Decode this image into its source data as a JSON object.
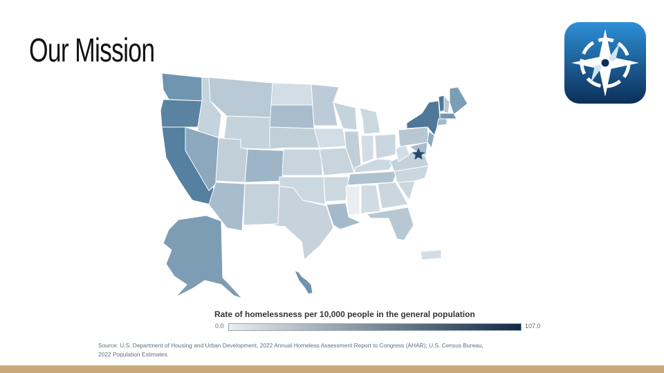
{
  "slide": {
    "title": "Our Mission",
    "logo_icon": "compass-logo-icon",
    "accent_color": "#c7a97c"
  },
  "map": {
    "subject": "Rate of homelessness per 10,000 people by state",
    "capital_marker_icon": "star-icon",
    "color_scale": {
      "min_color": "#e9edf0",
      "max_color": "#102a43"
    }
  },
  "legend": {
    "title": "Rate of homelessness per 10,000 people in the general population",
    "min_label": "0.0",
    "max_label": "107.0",
    "min": 0.0,
    "max": 107.0
  },
  "source": {
    "line1": "Source: U.S. Department of Housing and Urban Development, 2022 Annual Homeless Assessment Report to Congress (AHAR); U.S. Census Bureau,",
    "line2": "2022 Population Estimates."
  }
}
